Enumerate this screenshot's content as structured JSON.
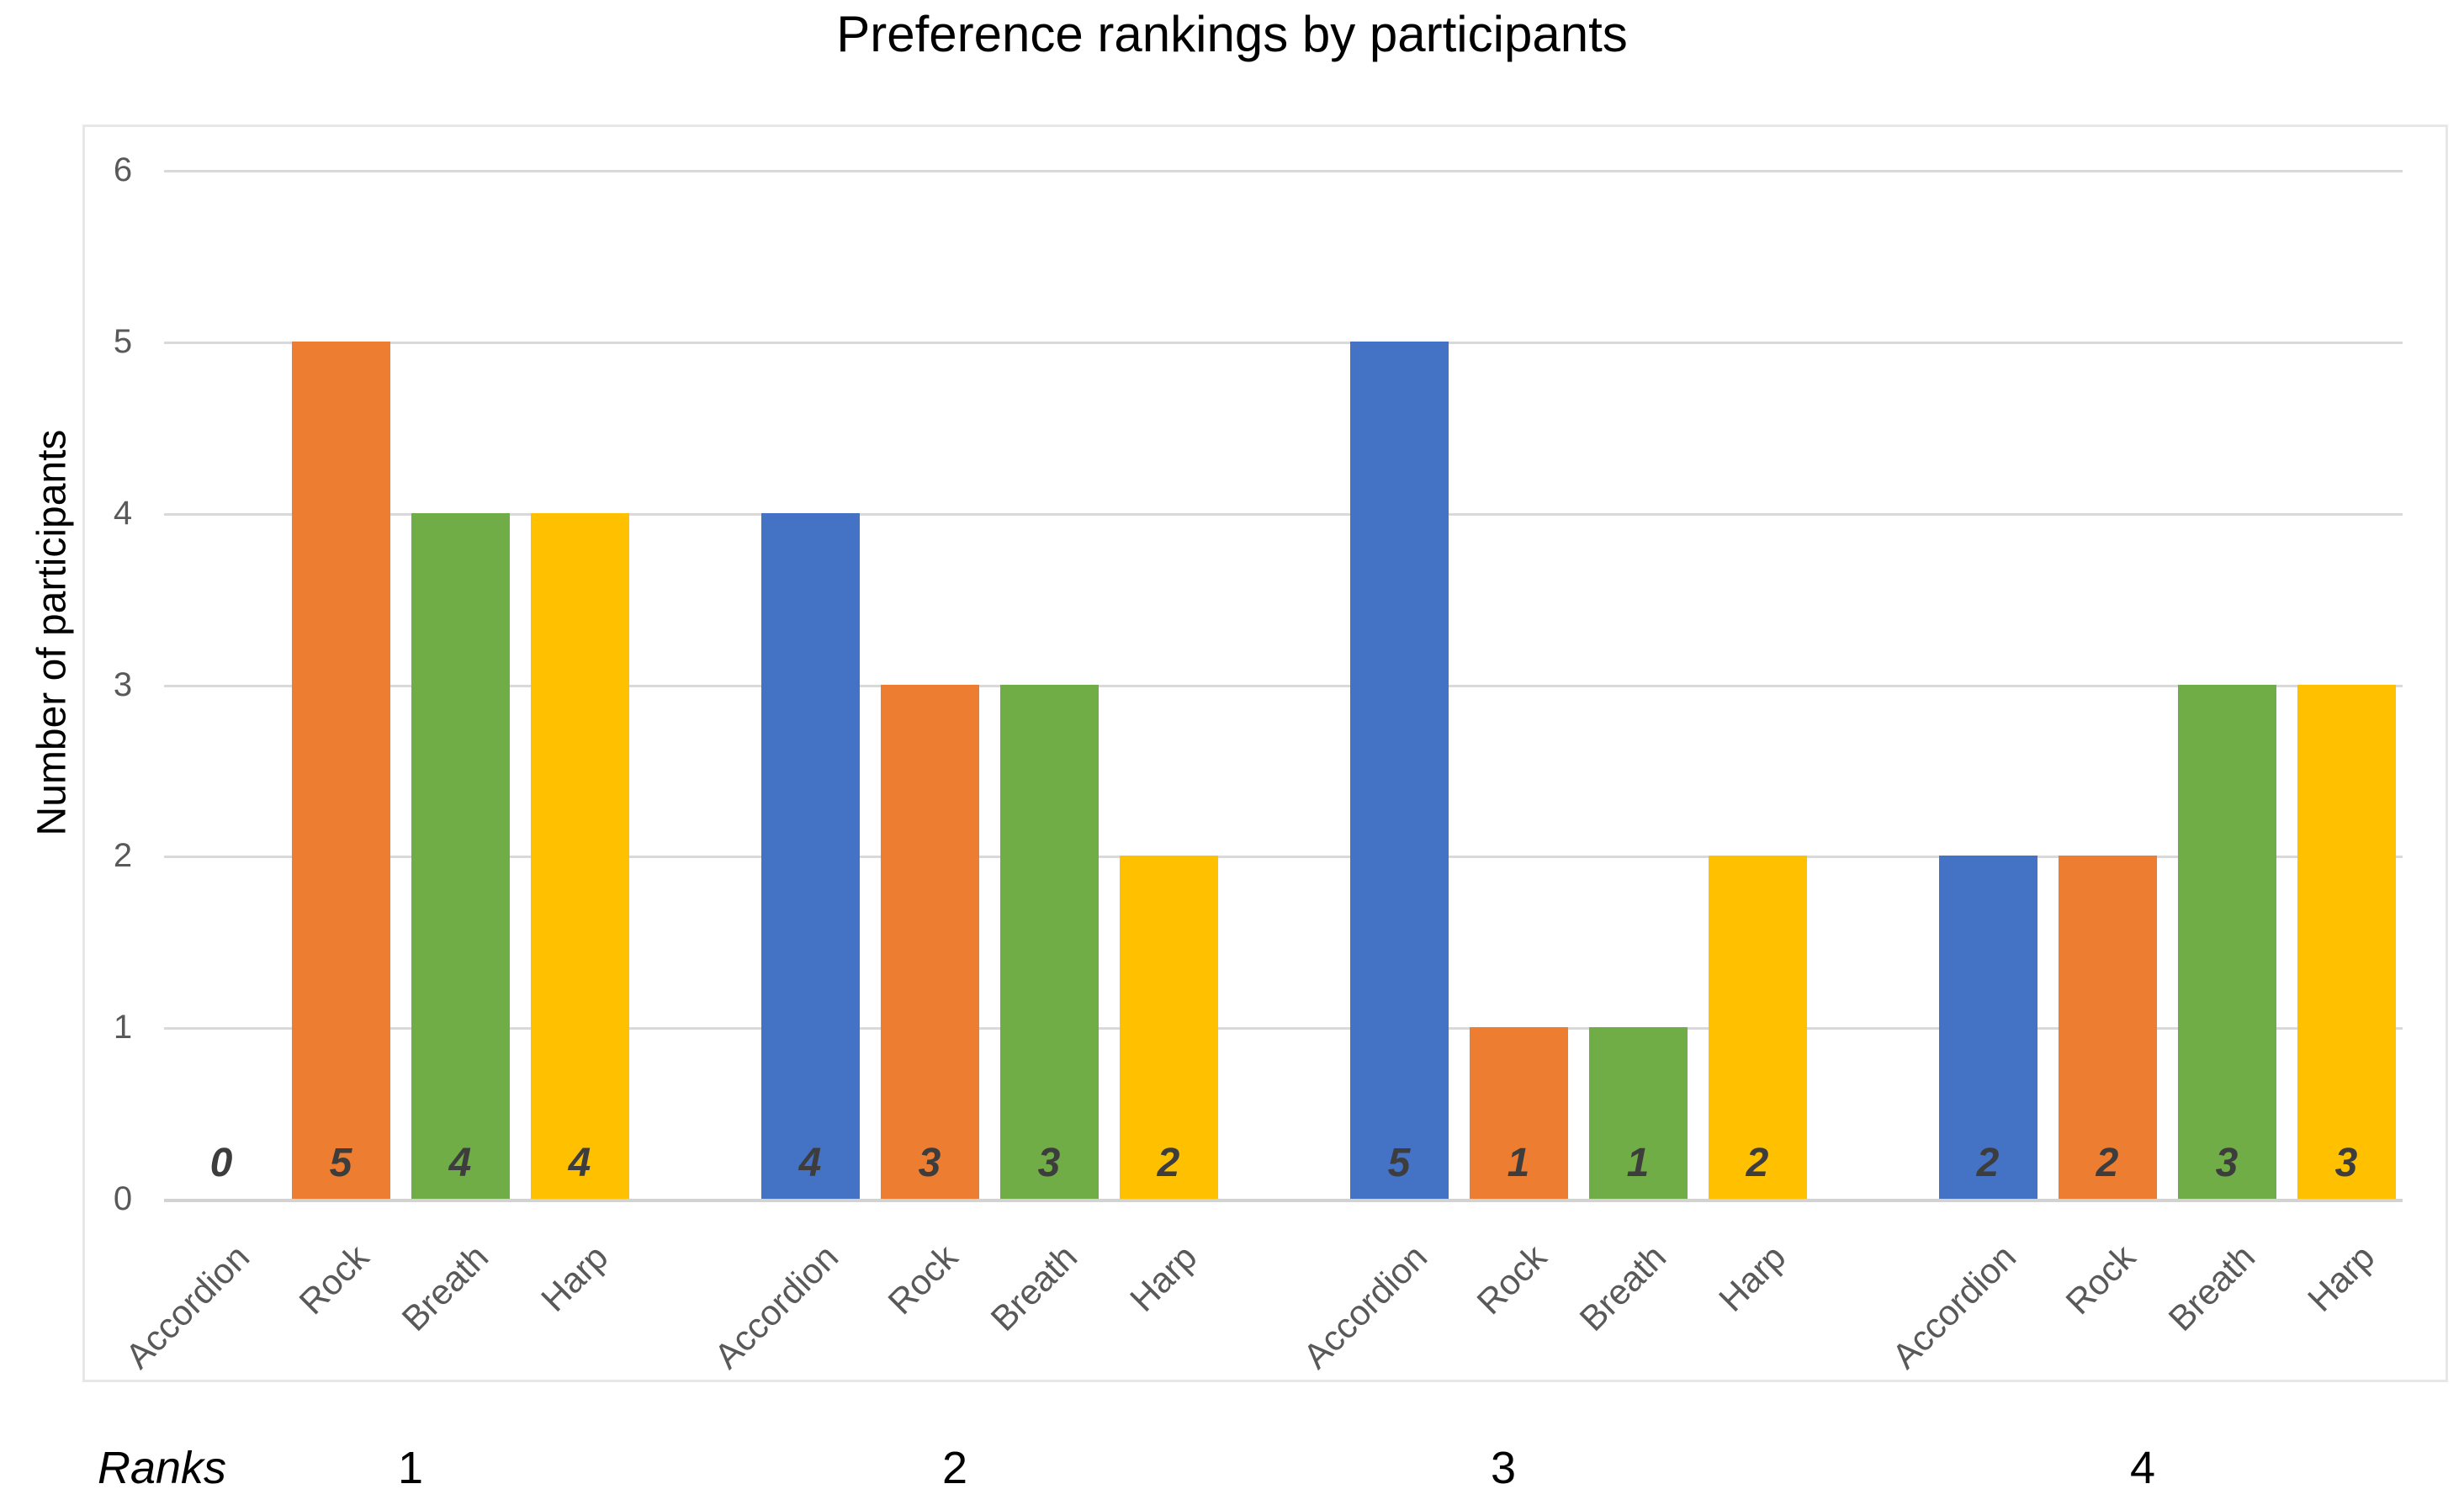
{
  "chart_data": {
    "type": "bar",
    "title": "Preference rankings by participants",
    "ylabel": "Number of participants",
    "xlabel": "Ranks",
    "ylim": [
      0,
      6
    ],
    "yticks": [
      0,
      1,
      2,
      3,
      4,
      5,
      6
    ],
    "grid": true,
    "legend": "none",
    "data_labels": "shown at bar base, bold italic",
    "categories": [
      "Accordion",
      "Rock",
      "Breath",
      "Harp"
    ],
    "groups": [
      {
        "rank": "1",
        "values": [
          0,
          5,
          4,
          4
        ]
      },
      {
        "rank": "2",
        "values": [
          4,
          3,
          3,
          2
        ]
      },
      {
        "rank": "3",
        "values": [
          5,
          1,
          1,
          2
        ]
      },
      {
        "rank": "4",
        "values": [
          2,
          2,
          3,
          3
        ]
      }
    ],
    "series_colors": {
      "Accordion": "#4472C4",
      "Rock": "#ED7D31",
      "Breath": "#70AD47",
      "Harp": "#FFC000"
    },
    "gridline_color": "#d9d9d9",
    "axis_line_color": "#d2d2d2",
    "tick_label_color": "#595959",
    "data_label_color": "#3d3d3d",
    "title_color": "#000000"
  }
}
